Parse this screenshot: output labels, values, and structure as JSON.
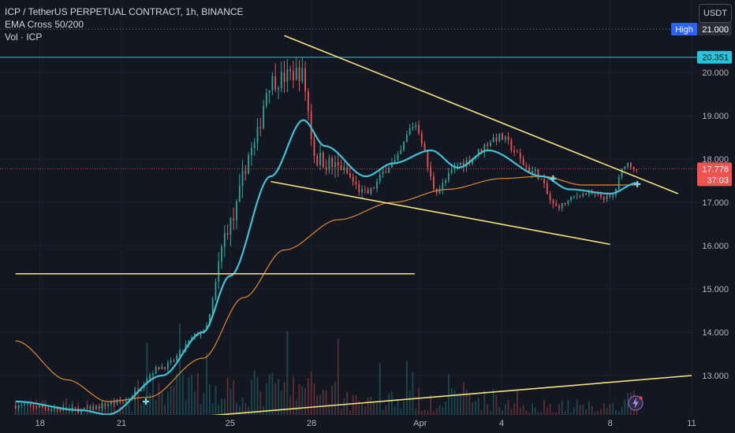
{
  "header": {
    "symbol_line": "ICP / TetherUS PERPETUAL CONTRACT, 1h, BINANCE",
    "indicator_1": "EMA Cross 50/200",
    "indicator_2": "Vol · ICP"
  },
  "currency_button": "USDT",
  "price_labels": {
    "high_tag": "High",
    "high_value": "21.000",
    "level_value": "20.351",
    "current_price": "17.776",
    "countdown": "37:03"
  },
  "colors": {
    "background": "#131722",
    "up": "#26a69a",
    "down": "#ef5350",
    "ema_fast": "#3ec2d6",
    "ema_slow": "#e08a2a",
    "trendline": "#f7e479",
    "level_line": "#26c6da"
  },
  "chart_data": {
    "type": "candlestick",
    "x_tick_labels": [
      "18",
      "21",
      "25",
      "28",
      "Apr",
      "4",
      "8",
      "11"
    ],
    "y_tick_labels": [
      "13.000",
      "14.000",
      "15.000",
      "16.000",
      "17.000",
      "18.000",
      "19.000",
      "20.000"
    ],
    "y_ticks": [
      13,
      14,
      15,
      16,
      17,
      18,
      19,
      20
    ],
    "ylim": [
      12.1,
      21.6
    ],
    "x_tick_day_index": [
      0,
      3,
      7,
      10,
      14,
      17,
      21,
      24
    ],
    "x_range_days": [
      -0.9,
      24.6
    ],
    "levels": {
      "high": 21.0,
      "resistance": 20.351,
      "last": 17.776
    },
    "ohlc_anchors": [
      {
        "day": -0.9,
        "price": 12.3
      },
      {
        "day": 1.5,
        "price": 12.2
      },
      {
        "day": 3.0,
        "price": 12.4
      },
      {
        "day": 4.5,
        "price": 13.2
      },
      {
        "day": 6.0,
        "price": 14.0
      },
      {
        "day": 7.0,
        "price": 16.5
      },
      {
        "day": 7.8,
        "price": 18.2
      },
      {
        "day": 8.5,
        "price": 19.8
      },
      {
        "day": 9.6,
        "price": 20.0
      },
      {
        "day": 10.2,
        "price": 18.0
      },
      {
        "day": 11.0,
        "price": 17.8
      },
      {
        "day": 12.0,
        "price": 17.2
      },
      {
        "day": 13.0,
        "price": 17.9
      },
      {
        "day": 13.8,
        "price": 18.8
      },
      {
        "day": 14.6,
        "price": 17.3
      },
      {
        "day": 15.5,
        "price": 17.9
      },
      {
        "day": 16.9,
        "price": 18.5
      },
      {
        "day": 18.2,
        "price": 17.7
      },
      {
        "day": 19.0,
        "price": 16.9
      },
      {
        "day": 20.0,
        "price": 17.2
      },
      {
        "day": 21.0,
        "price": 17.1
      },
      {
        "day": 21.6,
        "price": 17.9
      },
      {
        "day": 22.0,
        "price": 17.78
      }
    ],
    "ema_fast_anchors": [
      {
        "day": -0.9,
        "price": 12.4
      },
      {
        "day": 1.5,
        "price": 12.2
      },
      {
        "day": 2.5,
        "price": 12.1
      },
      {
        "day": 4.5,
        "price": 13.0
      },
      {
        "day": 6.0,
        "price": 14.0
      },
      {
        "day": 7.0,
        "price": 15.3
      },
      {
        "day": 8.5,
        "price": 17.6
      },
      {
        "day": 9.7,
        "price": 18.9
      },
      {
        "day": 10.5,
        "price": 18.3
      },
      {
        "day": 12.0,
        "price": 17.6
      },
      {
        "day": 13.0,
        "price": 17.9
      },
      {
        "day": 14.4,
        "price": 18.2
      },
      {
        "day": 15.4,
        "price": 17.8
      },
      {
        "day": 16.5,
        "price": 18.2
      },
      {
        "day": 18.5,
        "price": 17.6
      },
      {
        "day": 19.5,
        "price": 17.3
      },
      {
        "day": 21.0,
        "price": 17.2
      },
      {
        "day": 22.0,
        "price": 17.45
      }
    ],
    "ema_slow_anchors": [
      {
        "day": -0.9,
        "price": 13.8
      },
      {
        "day": 1.0,
        "price": 12.9
      },
      {
        "day": 2.5,
        "price": 12.4
      },
      {
        "day": 4.0,
        "price": 12.5
      },
      {
        "day": 6.0,
        "price": 13.4
      },
      {
        "day": 7.5,
        "price": 14.8
      },
      {
        "day": 9.0,
        "price": 15.9
      },
      {
        "day": 11.0,
        "price": 16.6
      },
      {
        "day": 13.0,
        "price": 17.0
      },
      {
        "day": 15.0,
        "price": 17.3
      },
      {
        "day": 17.0,
        "price": 17.55
      },
      {
        "day": 18.5,
        "price": 17.6
      },
      {
        "day": 20.0,
        "price": 17.4
      },
      {
        "day": 22.0,
        "price": 17.4
      }
    ],
    "trendlines": [
      {
        "from": {
          "day": 9.0,
          "price": 20.85
        },
        "to": {
          "day": 23.5,
          "price": 17.2
        }
      },
      {
        "from": {
          "day": 8.5,
          "price": 17.48
        },
        "to": {
          "day": 21.0,
          "price": 16.03
        }
      },
      {
        "from": {
          "day": -0.9,
          "price": 15.35
        },
        "to": {
          "day": 13.8,
          "price": 15.35
        }
      },
      {
        "from": {
          "day": 6.0,
          "price": 12.06
        },
        "to": {
          "day": 24.0,
          "price": 13.0
        }
      }
    ],
    "cross_markers": [
      {
        "day": 3.9,
        "price": 12.4
      },
      {
        "day": 18.9,
        "price": 17.55
      },
      {
        "day": 22.0,
        "price": 17.42
      }
    ]
  }
}
